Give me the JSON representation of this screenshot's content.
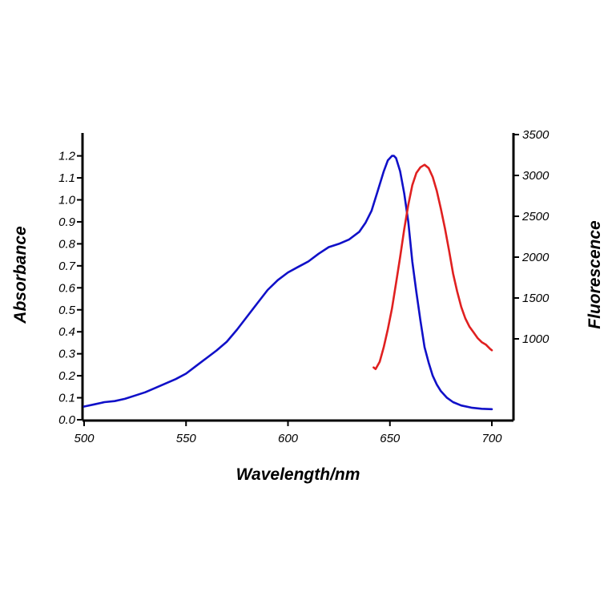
{
  "chart_data": {
    "type": "line",
    "xlabel": "Wavelength/nm",
    "ylabel": "Absorbance",
    "y2label": "Fluorescence",
    "xlim": [
      500,
      700
    ],
    "ylim": [
      0.0,
      1.3
    ],
    "y2lim": [
      0,
      3500
    ],
    "x_ticks": [
      500,
      550,
      600,
      650,
      700
    ],
    "x_tick_labels": [
      "500",
      "550",
      "600",
      "650",
      "700"
    ],
    "y_ticks": [
      0.0,
      0.1,
      0.2,
      0.3,
      0.4,
      0.5,
      0.6,
      0.7,
      0.8,
      0.9,
      1.0,
      1.1,
      1.2
    ],
    "y_tick_labels": [
      "0.0",
      "0.1",
      "0.2",
      "0.3",
      "0.4",
      "0.5",
      "0.6",
      "0.7",
      "0.8",
      "0.9",
      "1.0",
      "1.1",
      "1.2"
    ],
    "y2_ticks": [
      1000,
      1500,
      2000,
      2500,
      3000,
      3500
    ],
    "y2_tick_labels": [
      "1000",
      "1500",
      "2000",
      "2500",
      "3000",
      "3500"
    ],
    "grid": false,
    "series": [
      {
        "axis": "left",
        "color": "#1010c8",
        "x": [
          500,
          505,
          510,
          515,
          520,
          525,
          530,
          535,
          540,
          545,
          550,
          555,
          560,
          565,
          570,
          575,
          580,
          585,
          590,
          595,
          600,
          605,
          610,
          615,
          620,
          625,
          630,
          635,
          638,
          641,
          644,
          647,
          649,
          651,
          652,
          653,
          655,
          657,
          659,
          661,
          663,
          665,
          667,
          669,
          671,
          673,
          675,
          678,
          681,
          685,
          690,
          695,
          700
        ],
        "y": [
          0.06,
          0.07,
          0.08,
          0.085,
          0.095,
          0.11,
          0.125,
          0.145,
          0.165,
          0.185,
          0.21,
          0.245,
          0.28,
          0.315,
          0.355,
          0.41,
          0.47,
          0.53,
          0.59,
          0.635,
          0.67,
          0.695,
          0.72,
          0.755,
          0.785,
          0.8,
          0.82,
          0.855,
          0.895,
          0.95,
          1.04,
          1.13,
          1.18,
          1.2,
          1.2,
          1.19,
          1.13,
          1.03,
          0.9,
          0.72,
          0.58,
          0.45,
          0.33,
          0.26,
          0.2,
          0.16,
          0.13,
          0.1,
          0.08,
          0.065,
          0.055,
          0.05,
          0.048
        ]
      },
      {
        "axis": "right",
        "color": "#e02020",
        "x": [
          642,
          643,
          645,
          647,
          649,
          651,
          653,
          655,
          657,
          659,
          661,
          663,
          665,
          667,
          669,
          671,
          673,
          675,
          677,
          679,
          681,
          683,
          685,
          687,
          689,
          691,
          693,
          695,
          697,
          699,
          700
        ],
        "y": [
          650,
          630,
          720,
          900,
          1120,
          1370,
          1680,
          2000,
          2340,
          2640,
          2880,
          3030,
          3100,
          3130,
          3090,
          2980,
          2810,
          2590,
          2350,
          2080,
          1800,
          1580,
          1390,
          1250,
          1150,
          1080,
          1010,
          960,
          930,
          880,
          860
        ]
      }
    ]
  }
}
